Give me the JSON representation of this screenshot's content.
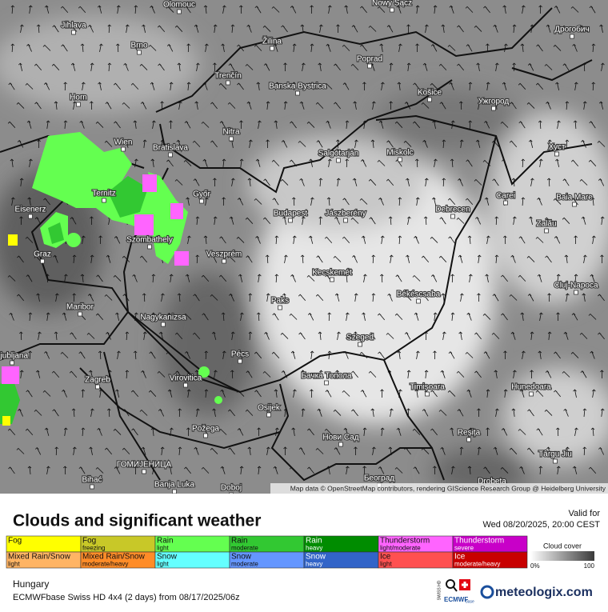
{
  "map": {
    "cities": [
      "Olomouc",
      "Jihlava",
      "Brno",
      "Žilina",
      "Nowy Sącz",
      "Дрогобич",
      "Poprad",
      "Trenčín",
      "Banska Bystrica",
      "Košice",
      "Ужгород",
      "Horn",
      "Nitra",
      "Wien",
      "Bratislava",
      "Salgótarján",
      "Miskolc",
      "Хуст",
      "Ternitz",
      "Győr",
      "Carei",
      "Baia Mare",
      "Eisenerz",
      "Budapest",
      "Jászberény",
      "Debrecen",
      "Szombathely",
      "Zalău",
      "Graz",
      "Veszprém",
      "Cluj-Napoca",
      "Kecskemét",
      "Paks",
      "Békéscsaba",
      "Maribor",
      "Nagykanizsa",
      "Szeged",
      "Pécs",
      "Ljubljana",
      "Zagreb",
      "Virovitica",
      "Бачка Топола",
      "Timișoara",
      "Hunedoara",
      "Osijek",
      "Požega",
      "Нови Сад",
      "Reșița",
      "Târgu Jiu",
      "ГОМИЈЕНИЦА",
      "Bihać",
      "Banja Luka",
      "Doboj",
      "Београд",
      "Drobeta"
    ],
    "attribution": "Map data © OpenStreetMap contributors, rendering GIScience Research Group @ Heidelberg University"
  },
  "header": {
    "title": "Clouds and significant weather",
    "valid_label": "Valid for",
    "valid_time": "Wed 08/20/2025, 20:00 CEST"
  },
  "legend": {
    "items": [
      {
        "label": "Fog",
        "sub": "",
        "color": "#ffff00"
      },
      {
        "label": "Fog",
        "sub": "freezing",
        "color": "#c8c828"
      },
      {
        "label": "Rain",
        "sub": "light",
        "color": "#64ff50"
      },
      {
        "label": "Rain",
        "sub": "moderate",
        "color": "#32c832"
      },
      {
        "label": "Rain",
        "sub": "heavy",
        "color": "#008c00"
      },
      {
        "label": "Thunderstorm",
        "sub": "light/moderate",
        "color": "#ff64ff"
      },
      {
        "label": "Thunderstorm",
        "sub": "severe",
        "color": "#c800c8"
      },
      {
        "label": "Mixed Rain/Snow",
        "sub": "light",
        "color": "#ffb464"
      },
      {
        "label": "Mixed Rain/Snow",
        "sub": "moderate/heavy",
        "color": "#ff8c28"
      },
      {
        "label": "Snow",
        "sub": "light",
        "color": "#64ffff"
      },
      {
        "label": "Snow",
        "sub": "moderate",
        "color": "#6496ff"
      },
      {
        "label": "Snow",
        "sub": "heavy",
        "color": "#3264c8"
      },
      {
        "label": "Ice",
        "sub": "light",
        "color": "#ff5050"
      },
      {
        "label": "Ice",
        "sub": "moderate/heavy",
        "color": "#c80000"
      }
    ],
    "cloud_label": "Cloud cover",
    "cloud_min": "0%",
    "cloud_max": "100"
  },
  "footer": {
    "region": "Hungary",
    "model": "ECMWFbase Swiss HD 4x4 (2 days) from  08/17/2025/06z",
    "swiss": "SWISS HD",
    "ecmwf": "ECMWF",
    "ecmwf_sub": "base",
    "brand": "meteologix.com"
  }
}
